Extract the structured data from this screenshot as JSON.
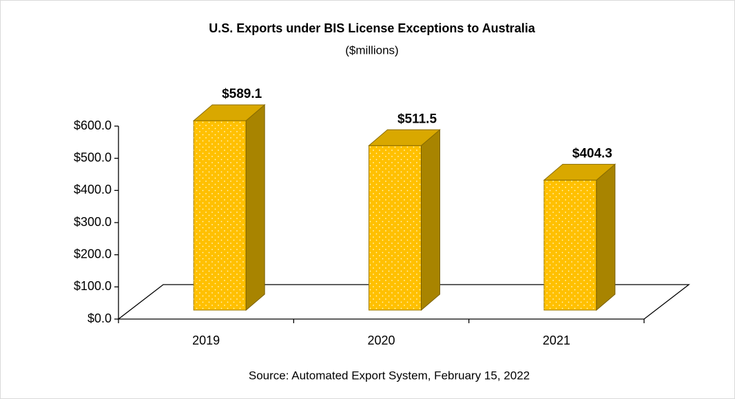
{
  "chart_data": {
    "type": "bar3d",
    "title": "U.S. Exports under BIS License Exceptions to Australia",
    "subtitle": "($millions)",
    "source": "Source: Automated Export System, February 15, 2022",
    "categories": [
      "2019",
      "2020",
      "2021"
    ],
    "values": [
      589.1,
      511.5,
      404.3
    ],
    "value_labels": [
      "$589.1",
      "$511.5",
      "$404.3"
    ],
    "color": "#ffc000",
    "ylim": [
      0,
      600
    ],
    "yticks": [
      {
        "value": 0,
        "label": "$0.0"
      },
      {
        "value": 100,
        "label": "$100.0"
      },
      {
        "value": 200,
        "label": "$200.0"
      },
      {
        "value": 300,
        "label": "$300.0"
      },
      {
        "value": 400,
        "label": "$400.0"
      },
      {
        "value": 500,
        "label": "$500.0"
      },
      {
        "value": 600,
        "label": "$600.0"
      }
    ]
  }
}
